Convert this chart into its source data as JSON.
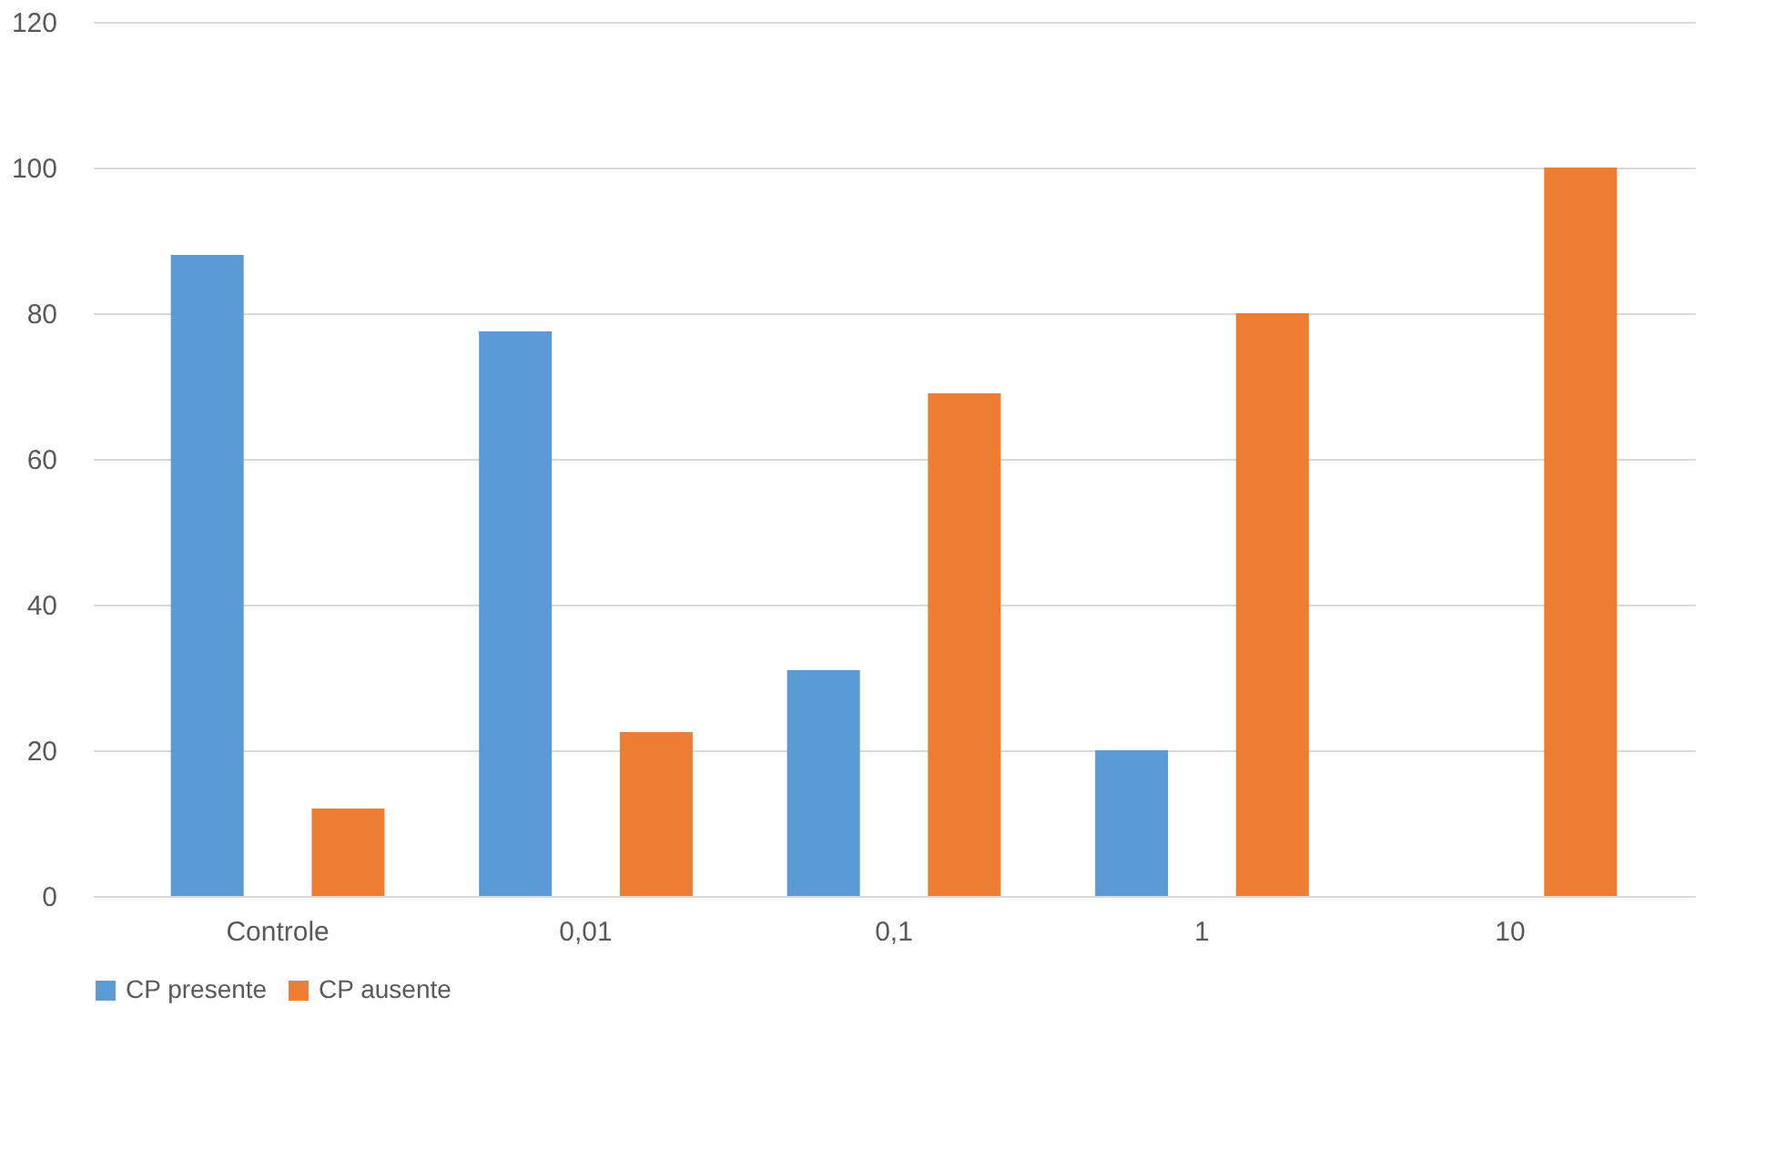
{
  "chart_data": {
    "type": "bar",
    "categories": [
      "Controle",
      "0,01",
      "0,1",
      "1",
      "10"
    ],
    "series": [
      {
        "name": "CP presente",
        "color": "#5b9bd5",
        "values": [
          88,
          77.5,
          31,
          20,
          0
        ]
      },
      {
        "name": "CP ausente",
        "color": "#ed7d31",
        "values": [
          12,
          22.5,
          69,
          80,
          100
        ]
      }
    ],
    "ylim": [
      0,
      120
    ],
    "yticks": [
      0,
      20,
      40,
      60,
      80,
      100,
      120
    ],
    "grid": "y",
    "legend": "bottom"
  }
}
